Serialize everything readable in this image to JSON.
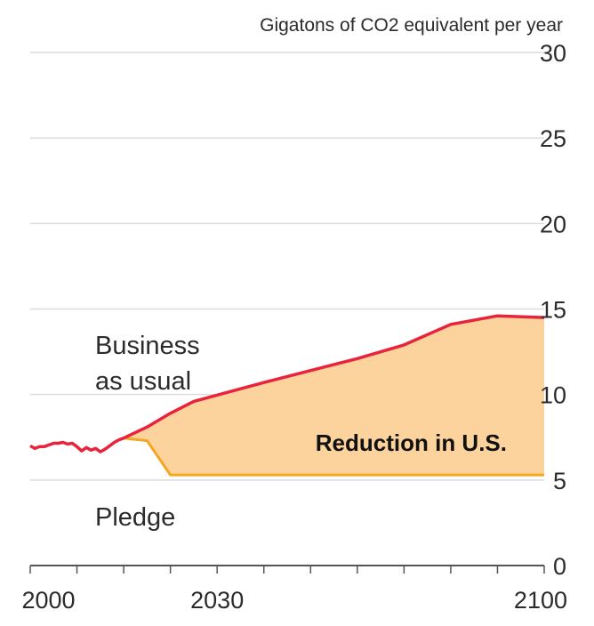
{
  "chart_data": {
    "type": "area",
    "units_label": "Gigatons of CO2 equivalent per year",
    "ylim": [
      0,
      30
    ],
    "y_ticks": [
      0,
      5,
      10,
      15,
      20,
      25,
      30
    ],
    "xlim": [
      1990,
      2100
    ],
    "x_ticks": [
      1990,
      2000,
      2010,
      2020,
      2030,
      2040,
      2050,
      2060,
      2070,
      2080,
      2090,
      2100
    ],
    "x_tick_labels": [
      {
        "year": 2000,
        "label": "2000"
      },
      {
        "year": 2030,
        "label": "2030"
      },
      {
        "year": 2100,
        "label": "2100"
      }
    ],
    "grid": true,
    "series": [
      {
        "name": "Business as usual",
        "color": "#e8243c",
        "points": [
          [
            1990,
            7.0
          ],
          [
            1991,
            6.85
          ],
          [
            1992,
            6.95
          ],
          [
            1993,
            6.95
          ],
          [
            1994,
            7.05
          ],
          [
            1995,
            7.15
          ],
          [
            1996,
            7.15
          ],
          [
            1997,
            7.2
          ],
          [
            1998,
            7.1
          ],
          [
            1999,
            7.15
          ],
          [
            2000,
            6.95
          ],
          [
            2001,
            6.7
          ],
          [
            2002,
            6.9
          ],
          [
            2003,
            6.75
          ],
          [
            2004,
            6.85
          ],
          [
            2005,
            6.65
          ],
          [
            2006,
            6.8
          ],
          [
            2007,
            7.0
          ],
          [
            2008,
            7.2
          ],
          [
            2009,
            7.35
          ],
          [
            2010,
            7.45
          ],
          [
            2015,
            8.1
          ],
          [
            2020,
            8.9
          ],
          [
            2025,
            9.6
          ],
          [
            2040,
            10.7
          ],
          [
            2050,
            11.4
          ],
          [
            2060,
            12.1
          ],
          [
            2070,
            12.9
          ],
          [
            2080,
            14.1
          ],
          [
            2090,
            14.6
          ],
          [
            2100,
            14.5
          ]
        ]
      },
      {
        "name": "Pledge",
        "color": "#f5a623",
        "points": [
          [
            2010,
            7.45
          ],
          [
            2015,
            7.3
          ],
          [
            2020,
            5.3
          ],
          [
            2100,
            5.3
          ]
        ]
      }
    ],
    "annotations": [
      {
        "text": "Business",
        "anchor": "Business as usual"
      },
      {
        "text": "as usual",
        "anchor": "Business as usual"
      },
      {
        "text": "Pledge",
        "anchor": "Pledge"
      },
      {
        "text": "Reduction in U.S.",
        "anchor": "shaded gap"
      }
    ],
    "fill_color": "#fcd39c"
  }
}
